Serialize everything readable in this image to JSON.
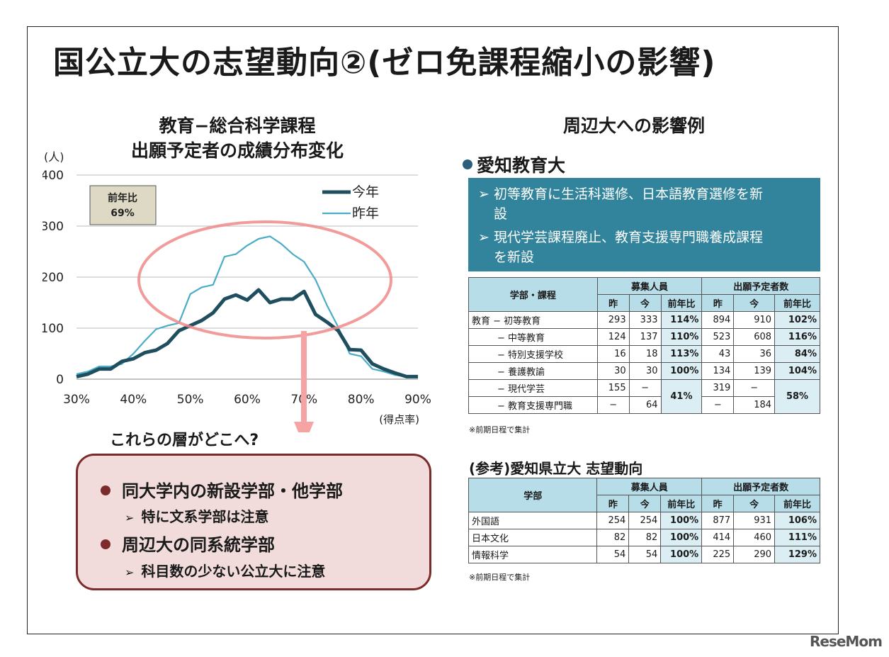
{
  "title": "国公立大の志望動向②(ゼロ免課程縮小の影響)",
  "chart_data": {
    "type": "line",
    "title_line1": "教育−総合科学課程",
    "title_line2": "出願予定者の成績分布変化",
    "ylabel": "(人)",
    "xlabel": "(得点率)",
    "ylim": [
      0,
      400
    ],
    "yticks": [
      0,
      100,
      200,
      300,
      400
    ],
    "xlim": [
      30,
      90
    ],
    "xticks": [
      30,
      40,
      50,
      60,
      70,
      80,
      90
    ],
    "xtick_labels": [
      "30%",
      "40%",
      "50%",
      "60%",
      "70%",
      "80%",
      "90%"
    ],
    "grid": true,
    "legend": "top-right",
    "badge": [
      "前年比",
      "69%"
    ],
    "series": [
      {
        "name": "今年",
        "color": "#1f4e5f",
        "x": [
          30,
          32,
          34,
          36,
          38,
          40,
          42,
          44,
          46,
          48,
          50,
          52,
          54,
          56,
          58,
          60,
          62,
          64,
          66,
          68,
          70,
          72,
          74,
          76,
          78,
          80,
          82,
          84,
          86,
          88,
          90
        ],
        "y": [
          5,
          10,
          20,
          20,
          35,
          40,
          52,
          57,
          70,
          95,
          105,
          115,
          130,
          157,
          165,
          155,
          175,
          150,
          157,
          157,
          172,
          127,
          112,
          95,
          58,
          57,
          30,
          20,
          12,
          5,
          5
        ]
      },
      {
        "name": "昨年",
        "color": "#4bacc6",
        "x": [
          30,
          32,
          34,
          36,
          38,
          40,
          42,
          44,
          46,
          48,
          50,
          52,
          54,
          56,
          58,
          60,
          62,
          64,
          66,
          68,
          70,
          72,
          74,
          76,
          78,
          80,
          82,
          84,
          86,
          88,
          90
        ],
        "y": [
          10,
          15,
          25,
          25,
          30,
          50,
          75,
          98,
          105,
          110,
          167,
          180,
          185,
          240,
          245,
          262,
          275,
          280,
          265,
          245,
          230,
          195,
          145,
          102,
          50,
          45,
          20,
          15,
          8,
          5,
          3
        ]
      }
    ]
  },
  "callout": {
    "question": "これらの層がどこへ?",
    "item1": "同大学内の新設学部・他学部",
    "item1_sub": "特に文系学部は注意",
    "item2": "周辺大の同系統学部",
    "item2_sub": "科目数の少ない公立大に注意"
  },
  "right": {
    "title": "周辺大への影響例",
    "university": "愛知教育大",
    "point1_a": "初等教育に生活科選修、日本語教育選修を新",
    "point1_b": "設",
    "point2_a": "現代学芸課程廃止、教育支援専門職養成課程",
    "point2_b": "を新設"
  },
  "table1": {
    "h_dept": "学部・課程",
    "h_recruit": "募集人員",
    "h_applicants": "出願予定者数",
    "h_last": "昨",
    "h_this": "今",
    "h_ratio": "前年比",
    "group": "教育",
    "rows": [
      {
        "name": "− 初等教育",
        "r1": "293",
        "r2": "333",
        "rr": "114%",
        "a1": "894",
        "a2": "910",
        "ar": "102%"
      },
      {
        "name": "− 中等教育",
        "r1": "124",
        "r2": "137",
        "rr": "110%",
        "a1": "523",
        "a2": "608",
        "ar": "116%"
      },
      {
        "name": "− 特別支援学校",
        "r1": "16",
        "r2": "18",
        "rr": "113%",
        "a1": "43",
        "a2": "36",
        "ar": "84%"
      },
      {
        "name": "− 養護教諭",
        "r1": "30",
        "r2": "30",
        "rr": "100%",
        "a1": "134",
        "a2": "139",
        "ar": "104%"
      },
      {
        "name": "− 現代学芸",
        "r1": "155",
        "r2": "−",
        "rr": "41%",
        "a1": "319",
        "a2": "−",
        "ar": "58%"
      },
      {
        "name": "− 教育支援専門職",
        "r1": "−",
        "r2": "64",
        "a1": "−",
        "a2": "184"
      }
    ],
    "note": "※前期日程で集計"
  },
  "ref_title": "(参考)愛知県立大 志望動向",
  "table2": {
    "h_dept": "学部",
    "h_recruit": "募集人員",
    "h_applicants": "出願予定者数",
    "h_last": "昨",
    "h_this": "今",
    "h_ratio": "前年比",
    "rows": [
      {
        "name": "外国語",
        "r1": "254",
        "r2": "254",
        "rr": "100%",
        "a1": "877",
        "a2": "931",
        "ar": "106%"
      },
      {
        "name": "日本文化",
        "r1": "82",
        "r2": "82",
        "rr": "100%",
        "a1": "414",
        "a2": "460",
        "ar": "111%"
      },
      {
        "name": "情報科学",
        "r1": "54",
        "r2": "54",
        "rr": "100%",
        "a1": "225",
        "a2": "290",
        "ar": "129%"
      }
    ],
    "note": "※前期日程で集計"
  },
  "logo": "ReseMom"
}
